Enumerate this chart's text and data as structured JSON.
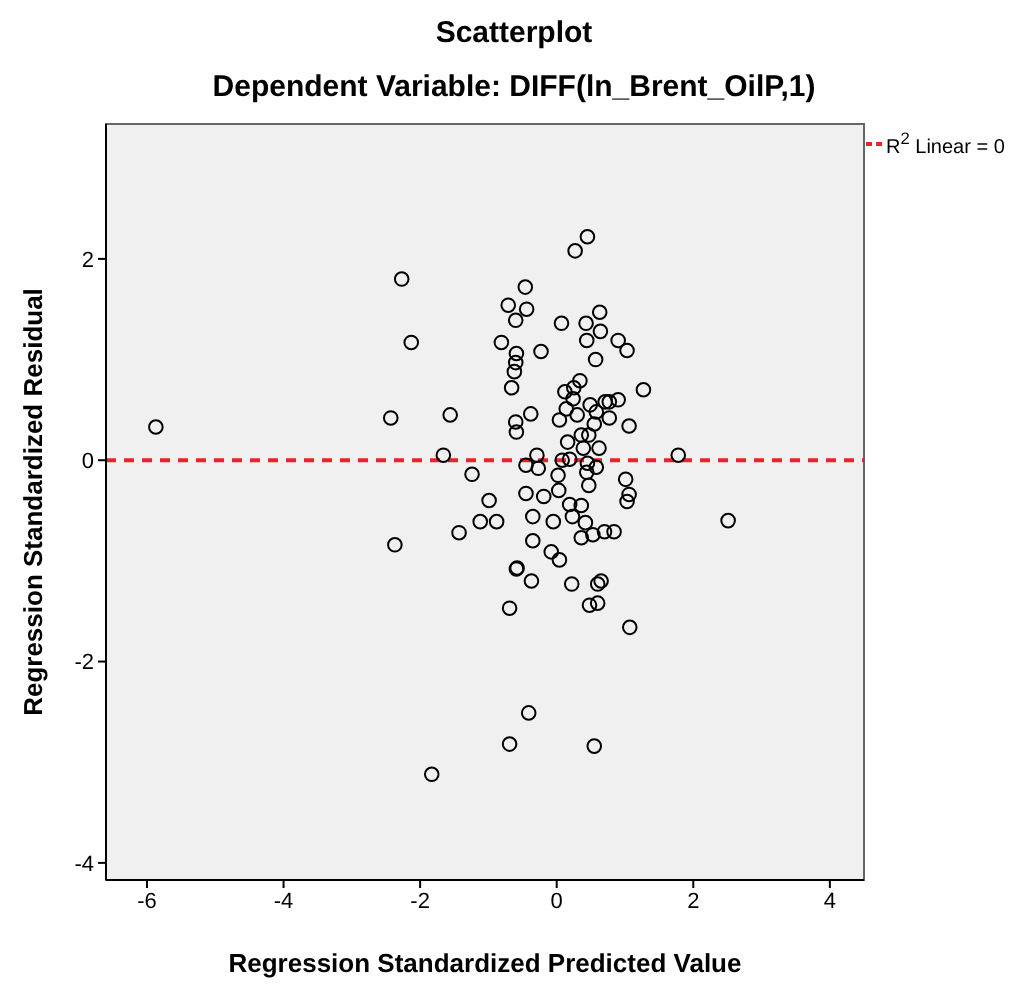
{
  "chart_data": {
    "type": "scatter",
    "title": "Scatterplot",
    "subtitle": "Dependent Variable: DIFF(ln_Brent_OilP,1)",
    "xlabel": "Regression Standardized Predicted Value",
    "ylabel": "Regression Standardized Residual",
    "xlim": [
      -6.6,
      4.5
    ],
    "ylim": [
      -4.17,
      3.34
    ],
    "xticks": [
      -6,
      -4,
      -2,
      0,
      2,
      4
    ],
    "yticks": [
      -4,
      -2,
      0,
      2
    ],
    "marker": "circle",
    "ref_lines": [
      {
        "axis": "y",
        "value": 0,
        "label": "R$^{2}$ Linear = 0",
        "color": "#e8242a",
        "line_style": "dashed"
      }
    ],
    "series": [
      {
        "color": "#000000",
        "x": [
          0.45,
          0.27,
          -2.27,
          -0.46,
          -0.71,
          -0.44,
          -0.6,
          0.63,
          0.07,
          0.43,
          0.64,
          -2.13,
          -0.81,
          0.44,
          0.9,
          1.03,
          -0.23,
          -0.59,
          -0.6,
          0.57,
          -0.62,
          -0.66,
          0.34,
          0.25,
          0.12,
          1.27,
          0.24,
          0.9,
          0.77,
          0.71,
          0.49,
          0.14,
          -2.43,
          -1.56,
          -0.38,
          -0.6,
          -0.59,
          0.04,
          0.3,
          0.58,
          0.77,
          1.06,
          0.55,
          0.36,
          0.47,
          0.16,
          0.62,
          0.39,
          -1.66,
          1.78,
          -0.29,
          -1.24,
          -0.45,
          -0.27,
          0.08,
          0.19,
          0.45,
          0.58,
          0.44,
          1.01,
          0.02,
          1.06,
          1.03,
          0.47,
          0.03,
          -0.99,
          -0.45,
          -0.19,
          0.19,
          0.36,
          0.23,
          0.42,
          -0.35,
          -0.05,
          -1.12,
          -0.88,
          -1.43,
          -2.37,
          0.36,
          0.53,
          0.7,
          0.84,
          -0.35,
          -0.08,
          0.04,
          -0.58,
          -0.59,
          -0.37,
          0.22,
          0.6,
          0.65,
          -0.69,
          0.48,
          0.6,
          1.07,
          -0.41,
          -0.69,
          0.55,
          -1.83,
          -5.87,
          2.51
        ],
        "values": [
          2.22,
          2.08,
          1.8,
          1.72,
          1.54,
          1.5,
          1.39,
          1.47,
          1.36,
          1.36,
          1.28,
          1.17,
          1.17,
          1.19,
          1.19,
          1.09,
          1.08,
          1.06,
          0.97,
          1.0,
          0.88,
          0.72,
          0.79,
          0.72,
          0.68,
          0.7,
          0.61,
          0.6,
          0.58,
          0.58,
          0.55,
          0.51,
          0.42,
          0.45,
          0.46,
          0.38,
          0.28,
          0.4,
          0.45,
          0.48,
          0.42,
          0.34,
          0.36,
          0.25,
          0.25,
          0.18,
          0.12,
          0.12,
          0.05,
          0.05,
          0.05,
          -0.14,
          -0.05,
          -0.08,
          0.0,
          0.01,
          -0.03,
          -0.07,
          -0.12,
          -0.19,
          -0.15,
          -0.34,
          -0.41,
          -0.25,
          -0.3,
          -0.4,
          -0.33,
          -0.36,
          -0.44,
          -0.45,
          -0.56,
          -0.62,
          -0.56,
          -0.61,
          -0.61,
          -0.61,
          -0.72,
          -0.84,
          -0.77,
          -0.74,
          -0.71,
          -0.71,
          -0.8,
          -0.91,
          -0.99,
          -1.07,
          -1.08,
          -1.2,
          -1.23,
          -1.23,
          -1.2,
          -1.47,
          -1.44,
          -1.42,
          -1.66,
          -2.51,
          -2.82,
          -2.84,
          -3.12,
          0.33,
          -0.6
        ]
      }
    ]
  }
}
